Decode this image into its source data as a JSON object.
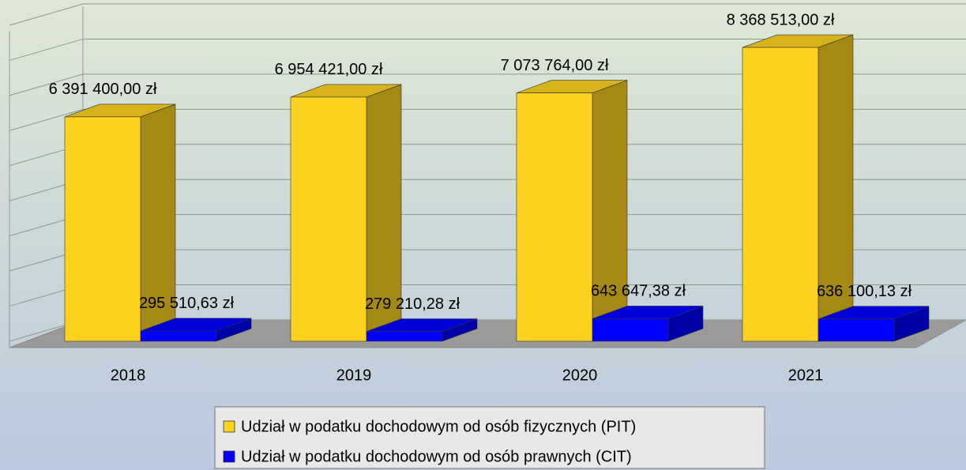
{
  "chart_data": {
    "type": "bar",
    "categories": [
      "2018",
      "2019",
      "2020",
      "2021"
    ],
    "series": [
      {
        "name": "Udział w podatku dochodowym od osób fizycznych (PIT)",
        "color": "#fcd21e",
        "values": [
          6391400,
          6954421,
          7073764,
          8368513
        ],
        "value_labels": [
          "6 391 400,00 zł",
          "6 954 421,00 zł",
          "7 073 764,00 zł",
          "8 368 513,00 zł"
        ]
      },
      {
        "name": "Udział w podatku dochodowym od osób prawnych (CIT)",
        "color": "#0000ff",
        "values": [
          295510.63,
          279210.28,
          643647.38,
          636100.13
        ],
        "value_labels": [
          "295 510,63 zł",
          "279 210,28 zł",
          "643 647,38 zł",
          "636 100,13 zł"
        ]
      }
    ],
    "ylim": [
      0,
      9000000
    ],
    "yticks": [
      0,
      1000000,
      2000000,
      3000000,
      4000000,
      5000000,
      6000000,
      7000000,
      8000000,
      9000000
    ],
    "grid": true,
    "legend": "bottom"
  }
}
